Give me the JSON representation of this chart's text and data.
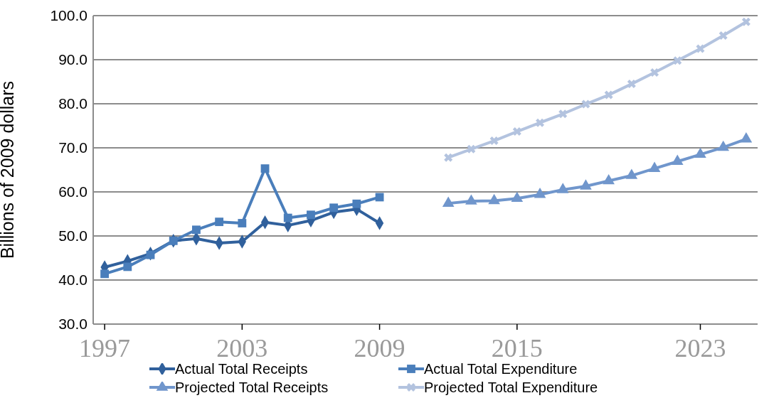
{
  "chart_data": {
    "type": "line",
    "ylabel": "Billions of 2009  dollars",
    "xlim": [
      1996.5,
      2025.5
    ],
    "xticks": [
      1997,
      2003,
      2009,
      2015,
      2023
    ],
    "ylim": [
      30,
      100
    ],
    "yticks": [
      {
        "value": 30,
        "label": "30.0"
      },
      {
        "value": 40,
        "label": "40.0"
      },
      {
        "value": 50,
        "label": "50.0"
      },
      {
        "value": 60,
        "label": "60.0"
      },
      {
        "value": 70,
        "label": "70.0"
      },
      {
        "value": 80,
        "label": "80.0"
      },
      {
        "value": 90,
        "label": "90.0"
      },
      {
        "value": 100,
        "label": "100.0"
      }
    ],
    "grid": "y",
    "legend": "bottom",
    "line_style": "solid",
    "series": [
      {
        "name": "Actual Total Receipts",
        "color": "#30609c",
        "marker": "diamond",
        "x": [
          1997,
          1998,
          1999,
          2000,
          2001,
          2002,
          2003,
          2004,
          2005,
          2006,
          2007,
          2008,
          2009
        ],
        "values": [
          42.9,
          44.3,
          46.0,
          48.9,
          49.4,
          48.4,
          48.7,
          53.1,
          52.4,
          53.5,
          55.4,
          56.1,
          52.9
        ]
      },
      {
        "name": "Actual Total Expenditure",
        "color": "#4a7ebb",
        "marker": "square",
        "x": [
          1997,
          1998,
          1999,
          2000,
          2001,
          2002,
          2003,
          2004,
          2005,
          2006,
          2007,
          2008,
          2009
        ],
        "values": [
          41.4,
          43.0,
          45.7,
          48.9,
          51.4,
          53.2,
          52.9,
          65.3,
          54.1,
          54.8,
          56.4,
          57.3,
          58.8
        ]
      },
      {
        "name": "Projected Total Receipts",
        "color": "#7096cc",
        "marker": "triangle",
        "x": [
          2012,
          2013,
          2014,
          2015,
          2016,
          2017,
          2018,
          2019,
          2020,
          2021,
          2022,
          2023,
          2024,
          2025
        ],
        "values": [
          57.4,
          57.9,
          58.0,
          58.5,
          59.4,
          60.5,
          61.3,
          62.5,
          63.7,
          65.3,
          66.9,
          68.5,
          70.1,
          72.0
        ]
      },
      {
        "name": "Projected Total Expenditure",
        "color": "#b3c3df",
        "marker": "cross",
        "x": [
          2012,
          2013,
          2014,
          2015,
          2016,
          2017,
          2018,
          2019,
          2020,
          2021,
          2022,
          2023,
          2024,
          2025
        ],
        "values": [
          67.8,
          69.7,
          71.6,
          73.7,
          75.7,
          77.7,
          79.9,
          82.0,
          84.5,
          87.1,
          89.8,
          92.5,
          95.5,
          98.6
        ]
      }
    ]
  }
}
